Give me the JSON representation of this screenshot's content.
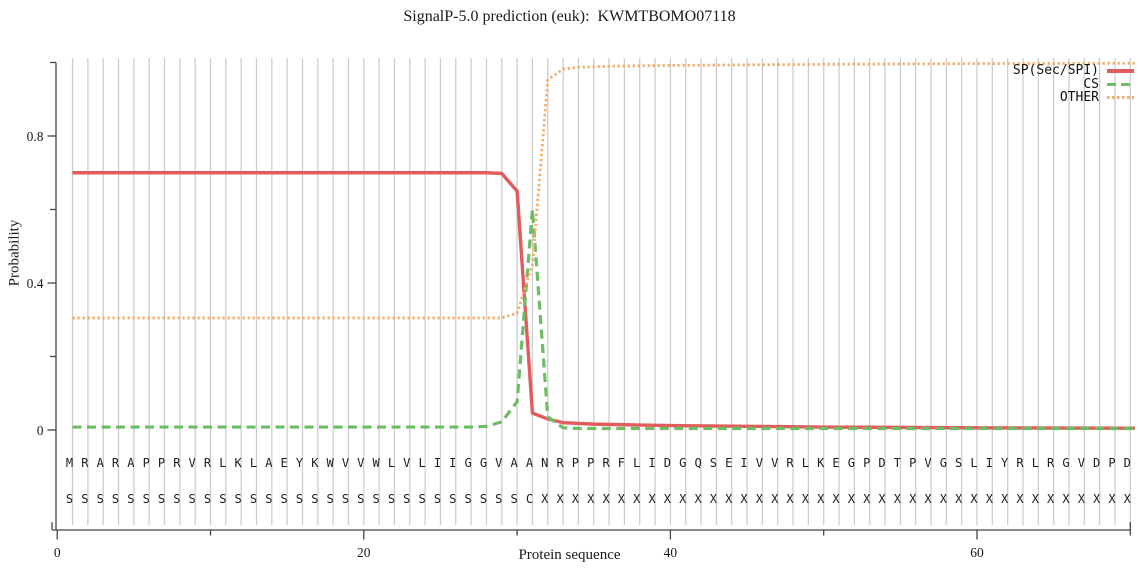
{
  "title": "SignalP-5.0 prediction (euk):  KWMTBOMO07118",
  "colors": {
    "sp": "#e25c5c",
    "cs": "#6cbd63",
    "other": "#f6aa63",
    "grid": "#cccccc",
    "axis": "#444444",
    "text": "#1a1a1a",
    "sequence_text": "#1e1e1e"
  },
  "legend": [
    {
      "label": "SP(Sec/SPI)",
      "color": "#e25c5c",
      "line_style": "solid"
    },
    {
      "label": "CS",
      "color": "#6cbd63",
      "line_style": "dashed"
    },
    {
      "label": "OTHER",
      "color": "#f6aa63",
      "line_style": "dotted"
    }
  ],
  "chart_data": {
    "type": "line",
    "title": "SignalP-5.0 prediction (euk):  KWMTBOMO07118",
    "xlabel": "Protein sequence",
    "ylabel": "Probability",
    "xlim": [
      0,
      70.3
    ],
    "ylim": [
      0,
      1
    ],
    "x_major_ticks": [
      {
        "value": 0,
        "label": "0"
      },
      {
        "value": 20,
        "label": "20"
      },
      {
        "value": 40,
        "label": "40"
      },
      {
        "value": 60,
        "label": "60"
      }
    ],
    "x_minor_ticks": [
      10,
      30,
      50,
      70
    ],
    "y_major_ticks": [
      {
        "value": 0,
        "label": "0"
      },
      {
        "value": 0.4,
        "label": "0.4"
      },
      {
        "value": 0.8,
        "label": "0.8"
      }
    ],
    "y_minor_ticks": [
      0.2,
      0.6,
      1
    ],
    "grid": "vertical gridline at every residue position 1-70",
    "legend_position": "top-right",
    "protein_sequence": "MRARAPPRVRLKLAEYKWVVWLVLIIGGVAANRPPRFLIDGQSEIVVRLKEGPDTPVGSLIYRLRGVDPD",
    "annotation_sequence": "SSSSSSSSSSSSSSSSSSSSSSSSSSSSSSCXXXXXXXXXXXXXXXXXXXXXXXXXXXXXXXXXXXXXXX",
    "series": [
      {
        "name": "SP(Sec/SPI)",
        "color": "#e25c5c",
        "line_style": "solid",
        "points": [
          [
            1,
            0.7
          ],
          [
            28,
            0.7
          ],
          [
            29,
            0.698
          ],
          [
            30,
            0.65
          ],
          [
            31,
            0.046
          ],
          [
            32,
            0.03
          ],
          [
            33,
            0.02
          ],
          [
            35,
            0.016
          ],
          [
            40,
            0.012
          ],
          [
            45,
            0.01
          ],
          [
            50,
            0.008
          ],
          [
            60,
            0.006
          ],
          [
            70,
            0.005
          ],
          [
            70.3,
            0.005
          ]
        ]
      },
      {
        "name": "CS",
        "color": "#6cbd63",
        "line_style": "dashed",
        "points": [
          [
            1,
            0.008
          ],
          [
            27,
            0.008
          ],
          [
            28,
            0.01
          ],
          [
            29,
            0.022
          ],
          [
            30,
            0.077
          ],
          [
            31,
            0.6
          ],
          [
            32,
            0.036
          ],
          [
            33,
            0.006
          ],
          [
            34,
            0.004
          ],
          [
            70.3,
            0.004
          ]
        ]
      },
      {
        "name": "OTHER",
        "color": "#f6aa63",
        "line_style": "dotted",
        "points": [
          [
            1,
            0.305
          ],
          [
            29,
            0.305
          ],
          [
            30,
            0.318
          ],
          [
            31,
            0.45
          ],
          [
            32,
            0.953
          ],
          [
            33,
            0.982
          ],
          [
            34,
            0.987
          ],
          [
            36,
            0.99
          ],
          [
            40,
            0.992
          ],
          [
            50,
            0.995
          ],
          [
            60,
            0.997
          ],
          [
            70,
            0.998
          ],
          [
            70.3,
            0.998
          ]
        ]
      }
    ]
  }
}
